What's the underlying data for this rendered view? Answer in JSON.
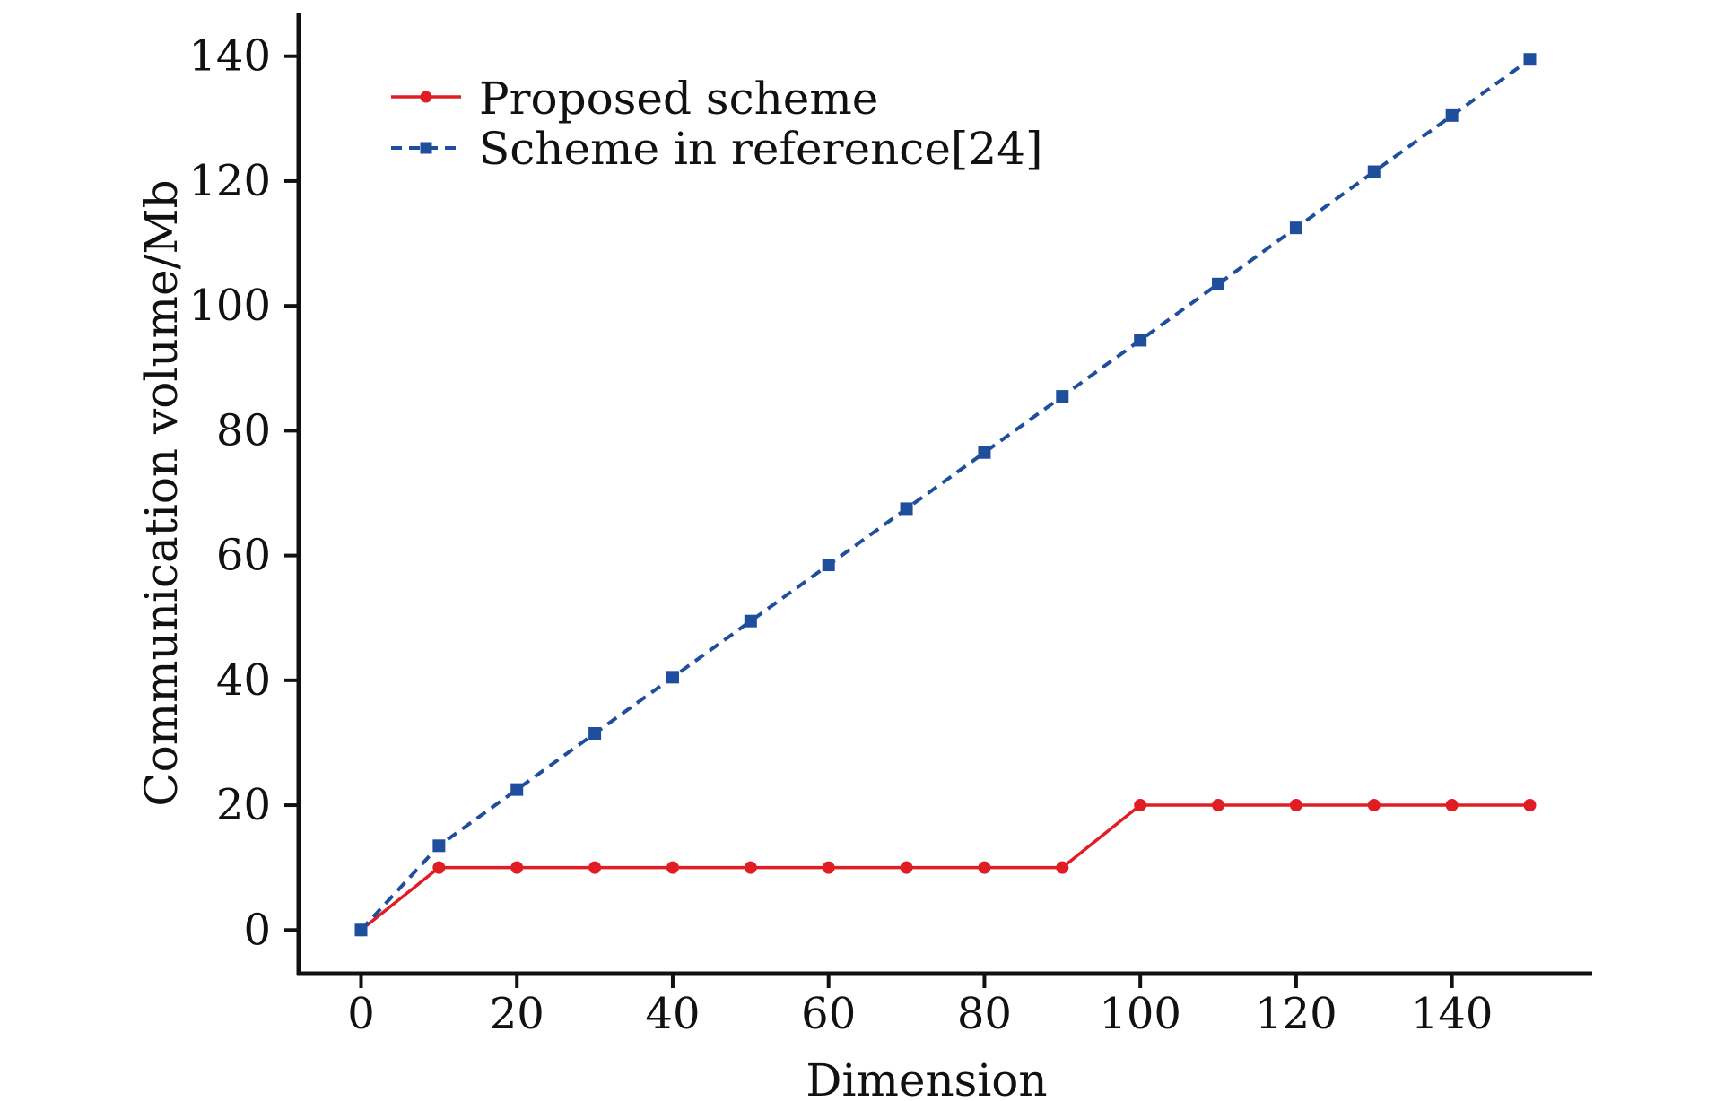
{
  "chart_data": {
    "type": "line",
    "xlabel": "Dimension",
    "ylabel": "Communication volume/Mb",
    "xlim": [
      -8,
      158
    ],
    "ylim": [
      -7,
      147
    ],
    "x_ticks": [
      0,
      20,
      40,
      60,
      80,
      100,
      120,
      140
    ],
    "y_ticks": [
      0,
      20,
      40,
      60,
      80,
      100,
      120,
      140
    ],
    "grid": false,
    "legend_position": "top-left",
    "x": [
      0,
      10,
      20,
      30,
      40,
      50,
      60,
      70,
      80,
      90,
      100,
      110,
      120,
      130,
      140,
      150
    ],
    "series": [
      {
        "name": "Proposed scheme",
        "color": "#e11d24",
        "line_style": "solid",
        "marker": "circle",
        "values": [
          0,
          10,
          10,
          10,
          10,
          10,
          10,
          10,
          10,
          10,
          20,
          20,
          20,
          20,
          20,
          20
        ]
      },
      {
        "name": "Scheme in reference[24]",
        "color": "#1f4e9c",
        "line_style": "dashed",
        "marker": "square",
        "values": [
          0,
          13.5,
          22.5,
          31.5,
          40.5,
          49.5,
          58.5,
          67.5,
          76.5,
          85.5,
          94.5,
          103.5,
          112.5,
          121.5,
          130.5,
          139.5
        ]
      }
    ]
  }
}
